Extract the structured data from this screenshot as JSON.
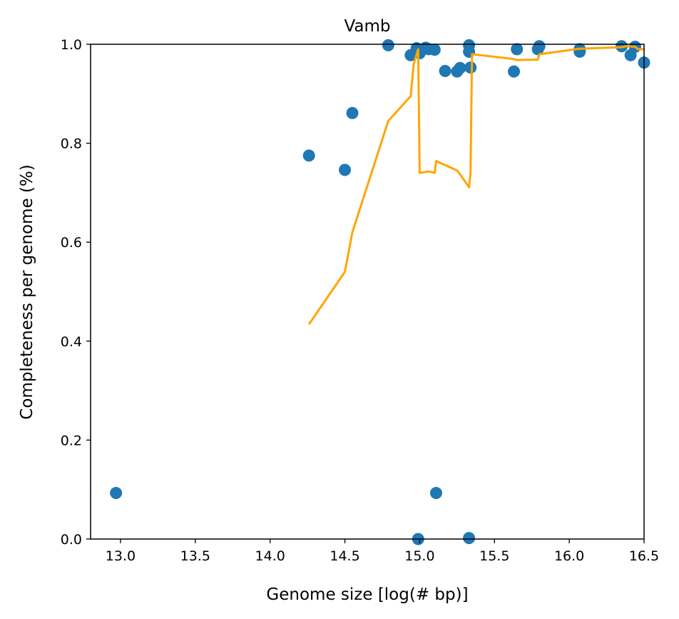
{
  "chart_data": {
    "type": "scatter",
    "title": "Vamb",
    "xlabel": "Genome size [log(# bp)]",
    "ylabel": "Completeness per genome (%)",
    "xlim": [
      12.8,
      16.5
    ],
    "ylim": [
      0.0,
      1.0
    ],
    "xticks": [
      13.0,
      13.5,
      14.0,
      14.5,
      15.0,
      15.5,
      16.0,
      16.5
    ],
    "xtick_labels": [
      "13.0",
      "13.5",
      "14.0",
      "14.5",
      "15.0",
      "15.5",
      "16.0",
      "16.5"
    ],
    "yticks": [
      0.0,
      0.2,
      0.4,
      0.6,
      0.8,
      1.0
    ],
    "ytick_labels": [
      "0.0",
      "0.2",
      "0.4",
      "0.6",
      "0.8",
      "1.0"
    ],
    "grid": false,
    "series": [
      {
        "kind": "scatter",
        "color": "#1f77b4",
        "points": [
          [
            12.97,
            0.093
          ],
          [
            14.26,
            0.775
          ],
          [
            14.5,
            0.746
          ],
          [
            14.55,
            0.861
          ],
          [
            14.79,
            0.998
          ],
          [
            14.94,
            0.978
          ],
          [
            14.98,
            0.992
          ],
          [
            15.0,
            0.982
          ],
          [
            15.04,
            0.993
          ],
          [
            15.06,
            0.99
          ],
          [
            15.1,
            0.989
          ],
          [
            15.17,
            0.946
          ],
          [
            15.25,
            0.945
          ],
          [
            15.27,
            0.952
          ],
          [
            15.33,
            0.985
          ],
          [
            15.33,
            0.998
          ],
          [
            15.34,
            0.953
          ],
          [
            15.63,
            0.945
          ],
          [
            15.65,
            0.99
          ],
          [
            15.79,
            0.99
          ],
          [
            15.8,
            0.996
          ],
          [
            16.07,
            0.985
          ],
          [
            16.07,
            0.99
          ],
          [
            16.35,
            0.996
          ],
          [
            16.41,
            0.978
          ],
          [
            16.44,
            0.995
          ],
          [
            16.5,
            0.963
          ],
          [
            14.99,
            0.0
          ],
          [
            15.11,
            0.093
          ],
          [
            15.33,
            0.002
          ]
        ]
      },
      {
        "kind": "line",
        "color": "#ffa500",
        "points": [
          [
            14.26,
            0.434
          ],
          [
            14.5,
            0.54
          ],
          [
            14.55,
            0.62
          ],
          [
            14.79,
            0.845
          ],
          [
            14.94,
            0.895
          ],
          [
            14.96,
            0.96
          ],
          [
            14.99,
            0.99
          ],
          [
            15.0,
            0.74
          ],
          [
            15.04,
            0.742
          ],
          [
            15.06,
            0.743
          ],
          [
            15.1,
            0.74
          ],
          [
            15.11,
            0.764
          ],
          [
            15.25,
            0.745
          ],
          [
            15.27,
            0.737
          ],
          [
            15.31,
            0.72
          ],
          [
            15.33,
            0.711
          ],
          [
            15.34,
            0.74
          ],
          [
            15.35,
            0.98
          ],
          [
            15.63,
            0.97
          ],
          [
            15.65,
            0.968
          ],
          [
            15.79,
            0.969
          ],
          [
            15.8,
            0.98
          ],
          [
            16.07,
            0.991
          ],
          [
            16.35,
            0.994
          ],
          [
            16.38,
            0.996
          ],
          [
            16.44,
            0.995
          ],
          [
            16.46,
            0.99
          ],
          [
            16.5,
            0.99
          ]
        ]
      }
    ]
  }
}
